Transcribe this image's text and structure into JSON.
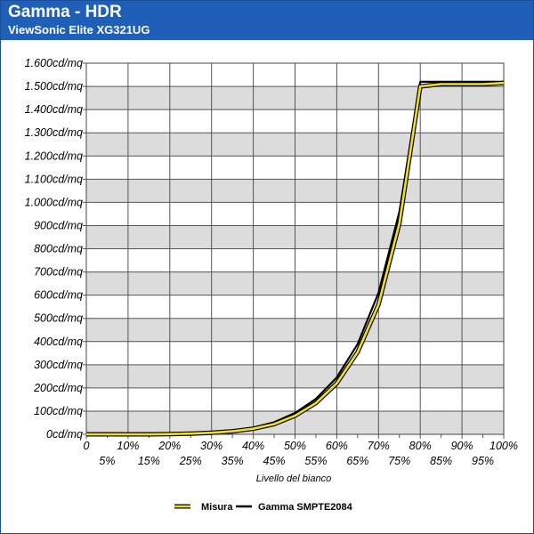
{
  "chart_data": {
    "type": "line",
    "title": "Gamma - HDR",
    "subtitle": "ViewSonic Elite XG321UG",
    "xlabel": "Livello del bianco",
    "ylabel": "",
    "ylim": [
      0,
      1600
    ],
    "xlim": [
      0,
      100
    ],
    "grid": true,
    "legend": "bottom",
    "y_ticks": [
      0,
      100,
      200,
      300,
      400,
      500,
      600,
      700,
      800,
      900,
      1000,
      1100,
      1200,
      1300,
      1400,
      1500,
      1600
    ],
    "y_tick_labels": [
      "0cd/mq",
      "100cd/mq",
      "200cd/mq",
      "300cd/mq",
      "400cd/mq",
      "500cd/mq",
      "600cd/mq",
      "700cd/mq",
      "800cd/mq",
      "900cd/mq",
      "1.000cd/mq",
      "1.100cd/mq",
      "1.200cd/mq",
      "1.300cd/mq",
      "1.400cd/mq",
      "1.500cd/mq",
      "1.600cd/mq"
    ],
    "x_ticks": [
      0,
      5,
      10,
      15,
      20,
      25,
      30,
      35,
      40,
      45,
      50,
      55,
      60,
      65,
      70,
      75,
      80,
      85,
      90,
      95,
      100
    ],
    "x_tick_labels": [
      "0",
      "5%",
      "10%",
      "15%",
      "20%",
      "25%",
      "30%",
      "35%",
      "40%",
      "45%",
      "50%",
      "55%",
      "60%",
      "65%",
      "70%",
      "75%",
      "80%",
      "85%",
      "90%",
      "95%",
      "100%"
    ],
    "x": [
      0,
      5,
      10,
      15,
      20,
      25,
      30,
      35,
      40,
      45,
      50,
      55,
      60,
      65,
      70,
      75,
      80,
      85,
      90,
      95,
      100
    ],
    "series": [
      {
        "name": "Misura",
        "color": "#f0e020",
        "values": [
          0,
          0,
          0,
          0,
          1,
          3,
          7,
          13,
          24,
          44,
          80,
          135,
          220,
          355,
          560,
          910,
          1500,
          1510,
          1510,
          1510,
          1515
        ]
      },
      {
        "name": "Gamma SMPTE2084",
        "color": "#000000",
        "values": [
          0,
          0,
          0,
          0,
          2,
          4,
          9,
          16,
          29,
          52,
          92,
          153,
          245,
          390,
          610,
          960,
          1520,
          1520,
          1520,
          1520,
          1520
        ]
      }
    ]
  }
}
